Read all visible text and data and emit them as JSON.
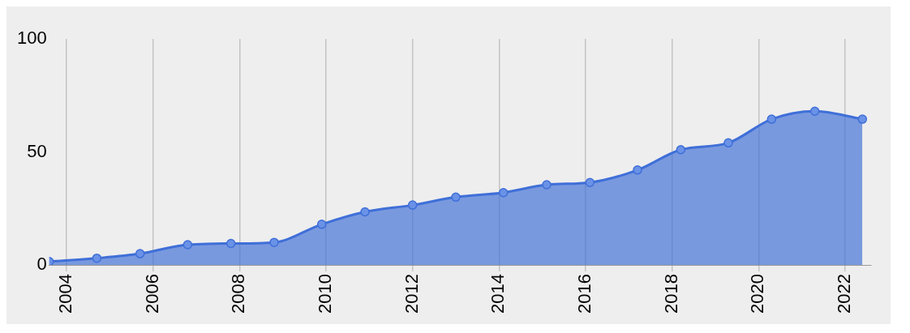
{
  "chart_data": {
    "type": "area",
    "x": [
      2003.6,
      2004.7,
      2005.7,
      2006.8,
      2007.8,
      2008.8,
      2009.9,
      2010.9,
      2012.0,
      2013.0,
      2014.1,
      2015.1,
      2016.1,
      2017.2,
      2018.2,
      2019.3,
      2020.3,
      2021.3,
      2022.4
    ],
    "series": [
      {
        "color": "#3f6fd8",
        "values": [
          1.5,
          3,
          5,
          9,
          9.5,
          10,
          18,
          23.5,
          26.5,
          30,
          32,
          35.5,
          36.5,
          42,
          51,
          54,
          64.5,
          68,
          64.5
        ]
      }
    ],
    "xlim": [
      2003.6,
      2022.6
    ],
    "xticks": [
      2004,
      2006,
      2008,
      2010,
      2012,
      2014,
      2016,
      2018,
      2020,
      2022
    ],
    "ylim": [
      0,
      100
    ],
    "yticks": [
      0,
      50,
      100
    ],
    "grid": "x",
    "marker": "circle",
    "legend": false
  }
}
